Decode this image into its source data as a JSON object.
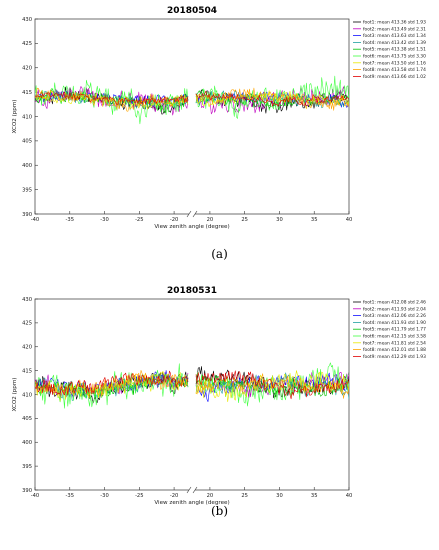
{
  "captions": [
    "(a)",
    "(b)"
  ],
  "chart_data": [
    {
      "type": "line",
      "title": "20180504",
      "xlabel": "View zenith angle (degree)",
      "ylabel": "XCO2 (ppm)",
      "ylim": [
        390,
        430
      ],
      "yticks": [
        "390",
        "395",
        "400",
        "405",
        "410",
        "415",
        "420",
        "425",
        "430"
      ],
      "xticks_left": [
        "-40",
        "-35",
        "-30",
        "-25",
        "-20"
      ],
      "xticks_right": [
        "20",
        "25",
        "30",
        "35",
        "40"
      ],
      "broken_x_axis": true,
      "x_segments": [
        [
          -40,
          -18
        ],
        [
          18,
          40
        ]
      ],
      "legend_position": "right",
      "series": [
        {
          "name": "foot1: mean 413.36 std 1.93",
          "color": "#000000",
          "mean": 413.36,
          "std": 1.93
        },
        {
          "name": "foot2: mean 413.49 std 2.31",
          "color": "#c000c0",
          "mean": 413.49,
          "std": 2.31
        },
        {
          "name": "foot3: mean 413.63 std 1.34",
          "color": "#1010ff",
          "mean": 413.63,
          "std": 1.34
        },
        {
          "name": "foot4: mean 413.42 std 1.39",
          "color": "#20a0a0",
          "mean": 413.42,
          "std": 1.39
        },
        {
          "name": "foot5: mean 413.38 std 1.51",
          "color": "#00c000",
          "mean": 413.38,
          "std": 1.51
        },
        {
          "name": "foot6: mean 413.75 std 3.30",
          "color": "#40ff40",
          "mean": 413.75,
          "std": 3.3
        },
        {
          "name": "foot7: mean 413.50 std 1.16",
          "color": "#e8e800",
          "mean": 413.5,
          "std": 1.16
        },
        {
          "name": "foot8: mean 413.58 std 1.74",
          "color": "#ffa500",
          "mean": 413.58,
          "std": 1.74
        },
        {
          "name": "foot9: mean 413.66 std 1.02",
          "color": "#e00000",
          "mean": 413.66,
          "std": 1.02
        }
      ]
    },
    {
      "type": "line",
      "title": "20180531",
      "xlabel": "View zenith angle (degree)",
      "ylabel": "XCO2 (ppm)",
      "ylim": [
        390,
        430
      ],
      "yticks": [
        "390",
        "395",
        "400",
        "405",
        "410",
        "415",
        "420",
        "425",
        "430"
      ],
      "xticks_left": [
        "-40",
        "-35",
        "-30",
        "-25",
        "-20"
      ],
      "xticks_right": [
        "20",
        "25",
        "30",
        "35",
        "40"
      ],
      "broken_x_axis": true,
      "x_segments": [
        [
          -40,
          -18
        ],
        [
          18,
          40
        ]
      ],
      "legend_position": "right",
      "series": [
        {
          "name": "foot1: mean 412.08 std 2.46",
          "color": "#000000",
          "mean": 412.08,
          "std": 2.46
        },
        {
          "name": "foot2: mean 411.93 std 2.04",
          "color": "#c000c0",
          "mean": 411.93,
          "std": 2.04
        },
        {
          "name": "foot3: mean 412.06 std 2.26",
          "color": "#1010ff",
          "mean": 412.06,
          "std": 2.26
        },
        {
          "name": "foot4: mean 411.93 std 1.90",
          "color": "#20a0a0",
          "mean": 411.93,
          "std": 1.9
        },
        {
          "name": "foot5: mean 411.79 std 1.77",
          "color": "#00c000",
          "mean": 411.79,
          "std": 1.77
        },
        {
          "name": "foot6: mean 412.15 std 3.58",
          "color": "#40ff40",
          "mean": 412.15,
          "std": 3.58
        },
        {
          "name": "foot7: mean 411.81 std 2.54",
          "color": "#e8e800",
          "mean": 411.81,
          "std": 2.54
        },
        {
          "name": "foot8: mean 412.01 std 1.88",
          "color": "#ffa500",
          "mean": 412.01,
          "std": 1.88
        },
        {
          "name": "foot9: mean 412.29 std 1.93",
          "color": "#e00000",
          "mean": 412.29,
          "std": 1.93
        }
      ]
    }
  ]
}
